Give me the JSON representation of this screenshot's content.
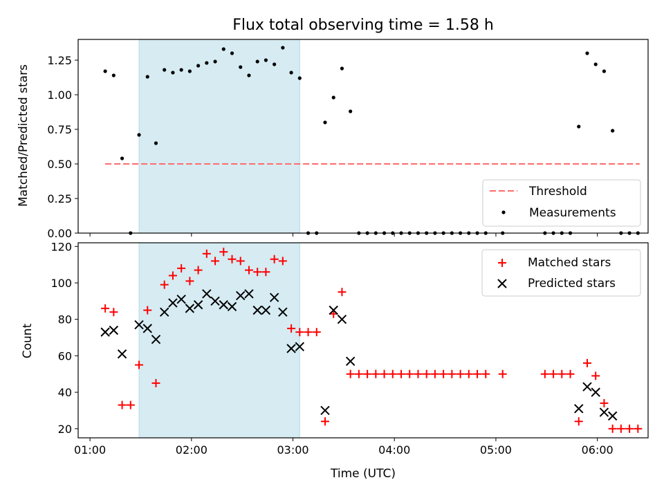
{
  "chart_data": [
    {
      "type": "scatter",
      "title": "Flux total observing time = 1.58 h",
      "xlabel": "",
      "ylabel": "Matched/Predicted stars",
      "ylim": [
        0,
        1.4
      ],
      "yticks": [
        "0.00",
        "0.25",
        "0.50",
        "0.75",
        "1.00",
        "1.25"
      ],
      "ytick_values": [
        0,
        0.25,
        0.5,
        0.75,
        1.0,
        1.25
      ],
      "xlim": [
        "00:53",
        "06:30"
      ],
      "highlight_span": [
        "01:29",
        "03:04"
      ],
      "highlight_color": "#add8e6",
      "threshold": {
        "name": "Threshold",
        "value": 0.5,
        "x": [
          "01:09",
          "06:25"
        ],
        "color": "#ff6b6b"
      },
      "series": [
        {
          "name": "Measurements",
          "color": "#000000",
          "x": [
            "01:09",
            "01:14",
            "01:19",
            "01:24",
            "01:29",
            "01:34",
            "01:39",
            "01:44",
            "01:49",
            "01:54",
            "01:59",
            "02:04",
            "02:09",
            "02:14",
            "02:19",
            "02:24",
            "02:29",
            "02:34",
            "02:39",
            "02:44",
            "02:49",
            "02:54",
            "02:59",
            "03:04",
            "03:09",
            "03:14",
            "03:19",
            "03:24",
            "03:29",
            "03:34",
            "03:39",
            "03:44",
            "03:49",
            "03:54",
            "03:59",
            "04:04",
            "04:09",
            "04:14",
            "04:19",
            "04:24",
            "04:29",
            "04:34",
            "04:39",
            "04:44",
            "04:49",
            "04:54",
            "05:04",
            "05:29",
            "05:34",
            "05:39",
            "05:44",
            "05:49",
            "05:54",
            "05:59",
            "06:04",
            "06:09",
            "06:14",
            "06:19",
            "06:24"
          ],
          "y": [
            1.17,
            1.14,
            0.54,
            0.0,
            0.71,
            1.13,
            0.65,
            1.18,
            1.16,
            1.18,
            1.17,
            1.21,
            1.23,
            1.24,
            1.33,
            1.3,
            1.2,
            1.14,
            1.24,
            1.25,
            1.22,
            1.34,
            1.16,
            1.12,
            0.0,
            0.0,
            0.8,
            0.98,
            1.19,
            0.88,
            0.0,
            0.0,
            0.0,
            0.0,
            0.0,
            0.0,
            0.0,
            0.0,
            0.0,
            0.0,
            0.0,
            0.0,
            0.0,
            0.0,
            0.0,
            0.0,
            0.0,
            0.0,
            0.0,
            0.0,
            0.0,
            0.77,
            1.3,
            1.22,
            1.17,
            0.74,
            0.0,
            0.0,
            0.0
          ]
        }
      ],
      "legend": {
        "placement": "lower-right",
        "entries": [
          "Threshold",
          "Measurements"
        ]
      }
    },
    {
      "type": "scatter",
      "title": "",
      "xlabel": "Time (UTC)",
      "ylabel": "Count",
      "ylim": [
        15,
        122
      ],
      "yticks": [
        "20",
        "40",
        "60",
        "80",
        "100",
        "120"
      ],
      "ytick_values": [
        20,
        40,
        60,
        80,
        100,
        120
      ],
      "xlim": [
        "00:53",
        "06:30"
      ],
      "xticks": [
        "01:00",
        "02:00",
        "03:00",
        "04:00",
        "05:00",
        "06:00"
      ],
      "highlight_span": [
        "01:29",
        "03:04"
      ],
      "series": [
        {
          "name": "Matched stars",
          "marker": "plus",
          "color": "#ff0000",
          "x": [
            "01:09",
            "01:14",
            "01:19",
            "01:24",
            "01:29",
            "01:34",
            "01:39",
            "01:44",
            "01:49",
            "01:54",
            "01:59",
            "02:04",
            "02:09",
            "02:14",
            "02:19",
            "02:24",
            "02:29",
            "02:34",
            "02:39",
            "02:44",
            "02:49",
            "02:54",
            "02:59",
            "03:04",
            "03:09",
            "03:14",
            "03:19",
            "03:24",
            "03:29",
            "03:34",
            "03:39",
            "03:44",
            "03:49",
            "03:54",
            "03:59",
            "04:04",
            "04:09",
            "04:14",
            "04:19",
            "04:24",
            "04:29",
            "04:34",
            "04:39",
            "04:44",
            "04:49",
            "04:54",
            "05:04",
            "05:29",
            "05:34",
            "05:39",
            "05:44",
            "05:49",
            "05:54",
            "05:59",
            "06:04",
            "06:09",
            "06:14",
            "06:19",
            "06:24"
          ],
          "y": [
            86,
            84,
            33,
            33,
            55,
            85,
            45,
            99,
            104,
            108,
            101,
            107,
            116,
            112,
            117,
            113,
            112,
            107,
            106,
            106,
            113,
            112,
            75,
            73,
            73,
            73,
            24,
            83,
            95,
            50,
            50,
            50,
            50,
            50,
            50,
            50,
            50,
            50,
            50,
            50,
            50,
            50,
            50,
            50,
            50,
            50,
            50,
            50,
            50,
            50,
            50,
            24,
            56,
            49,
            34,
            20,
            20,
            20,
            20
          ]
        },
        {
          "name": "Predicted stars",
          "marker": "x",
          "color": "#000000",
          "x": [
            "01:09",
            "01:14",
            "01:19",
            "01:29",
            "01:34",
            "01:39",
            "01:44",
            "01:49",
            "01:54",
            "01:59",
            "02:04",
            "02:09",
            "02:14",
            "02:19",
            "02:24",
            "02:29",
            "02:34",
            "02:39",
            "02:44",
            "02:49",
            "02:54",
            "02:59",
            "03:04",
            "03:19",
            "03:24",
            "03:29",
            "03:34",
            "05:49",
            "05:54",
            "05:59",
            "06:04",
            "06:09"
          ],
          "y": [
            73,
            74,
            61,
            77,
            75,
            69,
            84,
            89,
            91,
            86,
            88,
            94,
            90,
            88,
            87,
            93,
            94,
            85,
            85,
            92,
            84,
            64,
            65,
            30,
            85,
            80,
            57,
            31,
            43,
            40,
            29,
            27
          ]
        }
      ],
      "legend": {
        "placement": "upper-right",
        "entries": [
          "Matched stars",
          "Predicted stars"
        ]
      }
    }
  ]
}
